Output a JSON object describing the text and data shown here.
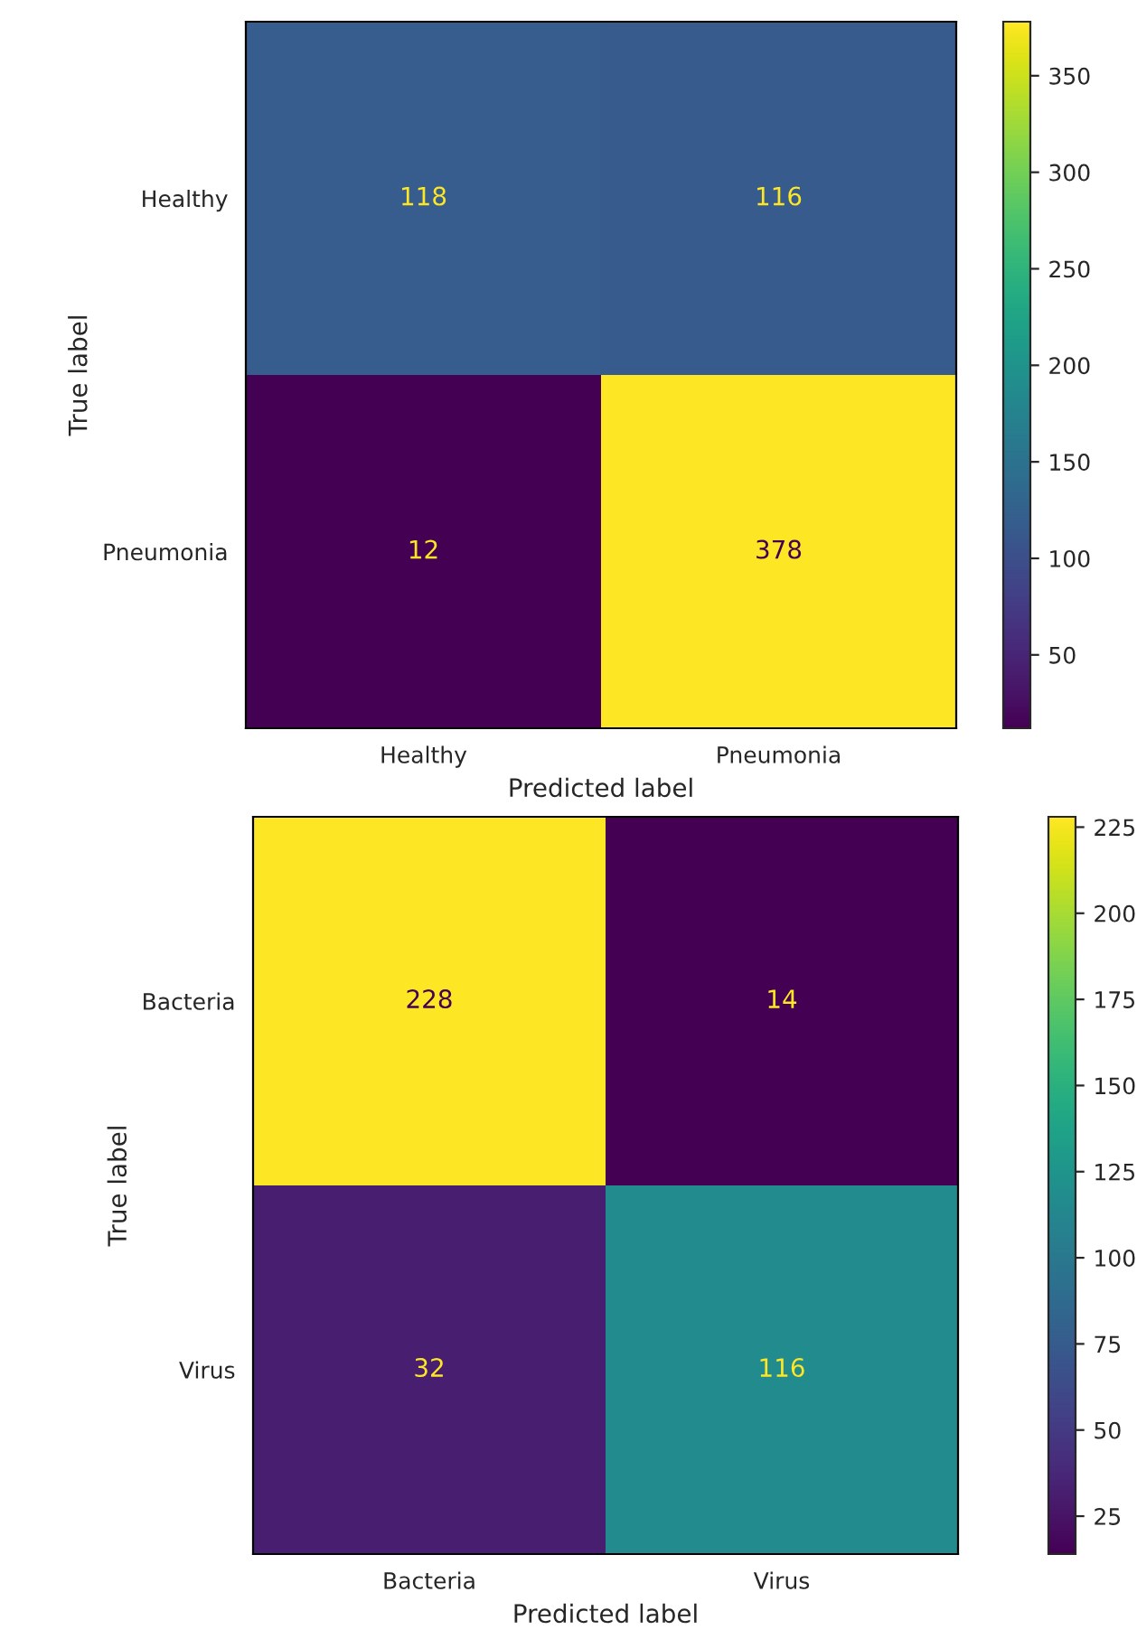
{
  "chart_data": [
    {
      "type": "heatmap",
      "categories": [
        "Healthy",
        "Pneumonia"
      ],
      "y_categories": [
        "Healthy",
        "Pneumonia"
      ],
      "cells": [
        [
          118,
          116
        ],
        [
          12,
          378
        ]
      ],
      "data_labels": true,
      "clim": [
        12,
        378
      ],
      "cticks": [
        50,
        100,
        150,
        200,
        250,
        300,
        350
      ],
      "xlabel": "Predicted label",
      "ylabel": "True label"
    },
    {
      "type": "heatmap",
      "categories": [
        "Bacteria",
        "Virus"
      ],
      "y_categories": [
        "Bacteria",
        "Virus"
      ],
      "cells": [
        [
          228,
          14
        ],
        [
          32,
          116
        ]
      ],
      "data_labels": true,
      "clim": [
        14,
        228
      ],
      "cticks": [
        25,
        50,
        75,
        100,
        125,
        150,
        175,
        200,
        225
      ],
      "xlabel": "Predicted label",
      "ylabel": "True label"
    }
  ]
}
